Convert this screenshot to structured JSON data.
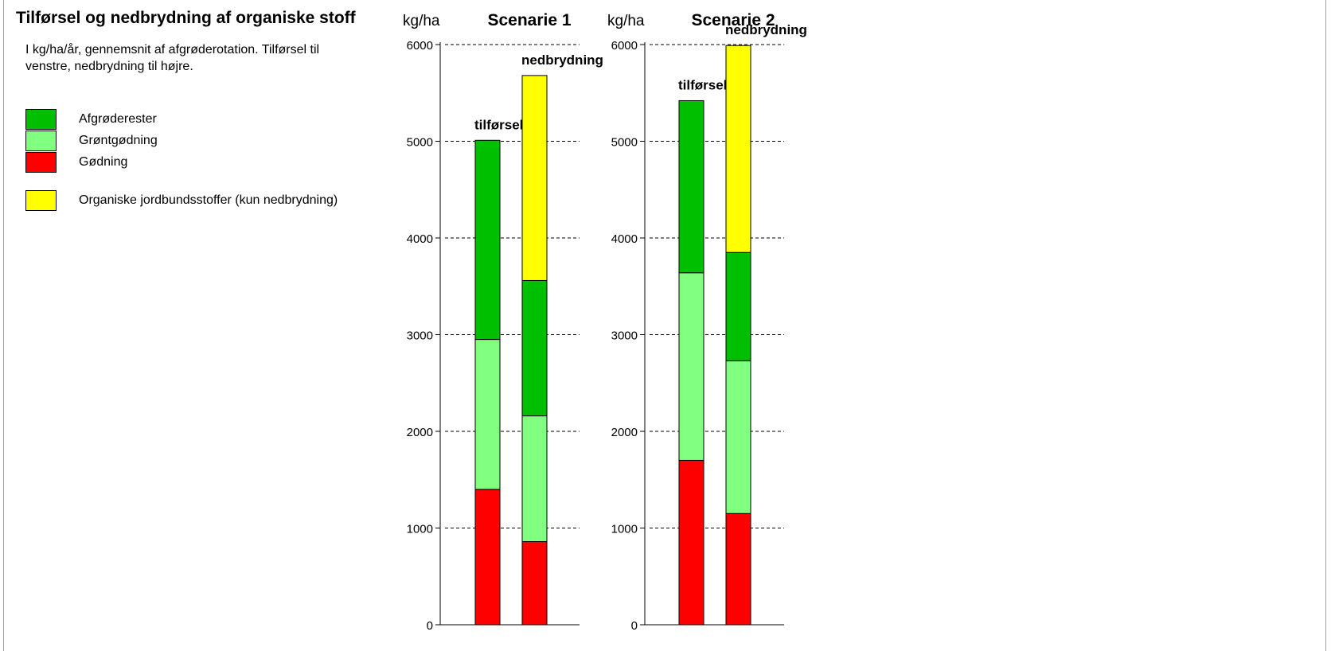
{
  "title": "Tilførsel og nedbrydning af organiske stoff",
  "description": "I kg/ha/år, gennemsnit af afgrøderotation. Tilførsel til venstre, nedbrydning til højre.",
  "legend": [
    {
      "label": "Afgrøderester",
      "color": "#00bf00"
    },
    {
      "label": "Grøntgødning",
      "color": "#80ff80"
    },
    {
      "label": "Gødning",
      "color": "#ff0000"
    },
    {
      "label": "Organiske jordbundsstoffer (kun nedbrydning)",
      "color": "#ffff00"
    }
  ],
  "chart_data": [
    {
      "type": "bar",
      "stacked": true,
      "title": "Scenarie 1",
      "ylabel": "kg/ha",
      "ylim": [
        0,
        6000
      ],
      "yticks": [
        "0",
        "1000",
        "2000",
        "3000",
        "4000",
        "5000",
        "6000"
      ],
      "grid": "dashed horizontal",
      "categories": [
        "tilførsel",
        "nedbrydning"
      ],
      "series": [
        {
          "name": "Gødning",
          "values": [
            1400,
            860
          ],
          "color": "#ff0000"
        },
        {
          "name": "Grøntgødning",
          "values": [
            1550,
            1300
          ],
          "color": "#80ff80"
        },
        {
          "name": "Afgrøderester",
          "values": [
            2060,
            1400
          ],
          "color": "#00bf00"
        },
        {
          "name": "Organiske jordbundsstoffer (kun nedbrydning)",
          "values": [
            0,
            2120
          ],
          "color": "#ffff00"
        }
      ]
    },
    {
      "type": "bar",
      "stacked": true,
      "title": "Scenarie 2",
      "ylabel": "kg/ha",
      "ylim": [
        0,
        6000
      ],
      "yticks": [
        "0",
        "1000",
        "2000",
        "3000",
        "4000",
        "5000",
        "6000"
      ],
      "grid": "dashed horizontal",
      "categories": [
        "tilførsel",
        "nedbrydning"
      ],
      "series": [
        {
          "name": "Gødning",
          "values": [
            1700,
            1150
          ],
          "color": "#ff0000"
        },
        {
          "name": "Grøntgødning",
          "values": [
            1940,
            1580
          ],
          "color": "#80ff80"
        },
        {
          "name": "Afgrøderester",
          "values": [
            1780,
            1120
          ],
          "color": "#00bf00"
        },
        {
          "name": "Organiske jordbundsstoffer (kun nedbrydning)",
          "values": [
            0,
            2140
          ],
          "color": "#ffff00"
        }
      ]
    }
  ]
}
